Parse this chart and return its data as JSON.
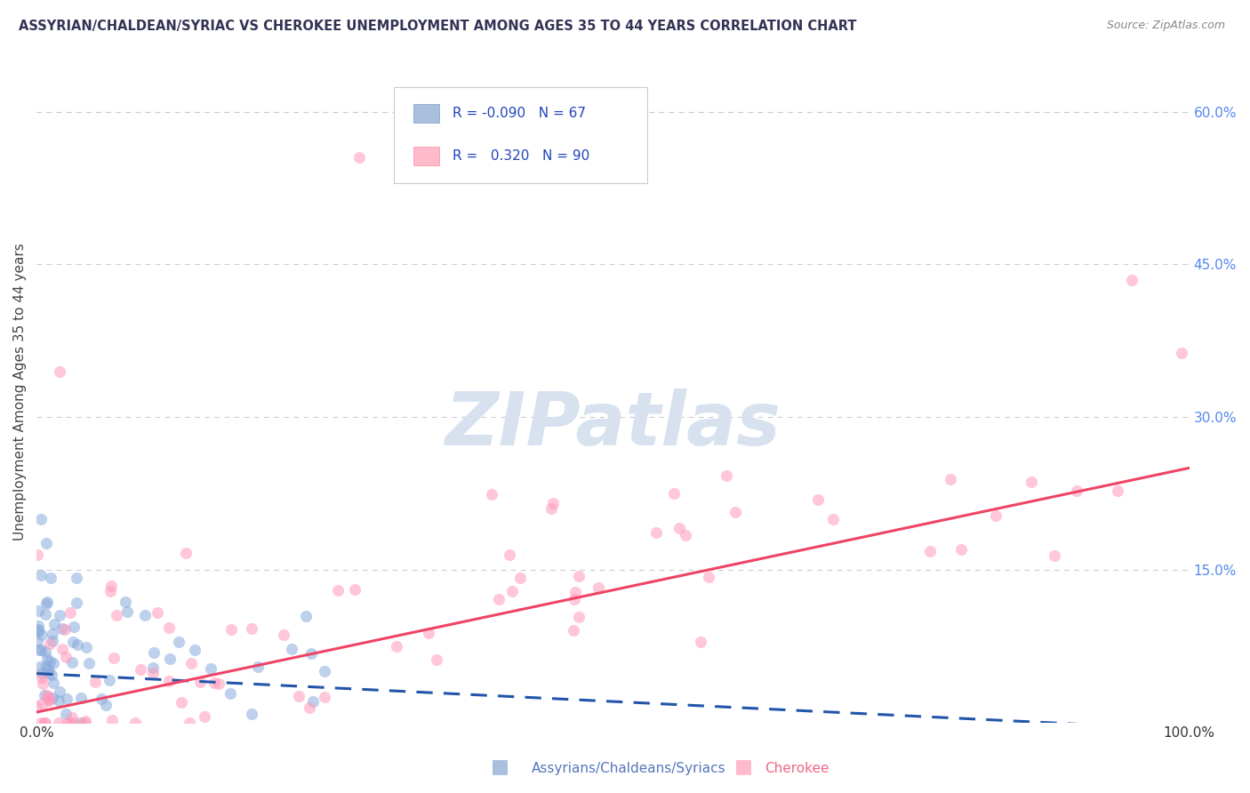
{
  "title": "ASSYRIAN/CHALDEAN/SYRIAC VS CHEROKEE UNEMPLOYMENT AMONG AGES 35 TO 44 YEARS CORRELATION CHART",
  "source_text": "Source: ZipAtlas.com",
  "ylabel": "Unemployment Among Ages 35 to 44 years",
  "xlim": [
    0,
    1.0
  ],
  "ylim": [
    0,
    0.65
  ],
  "ytick_values": [
    0.15,
    0.3,
    0.45,
    0.6
  ],
  "ytick_labels": [
    "15.0%",
    "30.0%",
    "45.0%",
    "60.0%"
  ],
  "xtick_values": [
    0.0,
    1.0
  ],
  "xtick_labels": [
    "0.0%",
    "100.0%"
  ],
  "legend_entries": [
    {
      "R": "-0.090",
      "N": "67",
      "color": "#AABFDD",
      "edge": "#88AACC"
    },
    {
      "R": "  0.320",
      "N": "90",
      "color": "#FFBBCC",
      "edge": "#FF99AA"
    }
  ],
  "blue_scatter_color": "#88AADD",
  "pink_scatter_color": "#FF99BB",
  "line_blue_color": "#2255AA",
  "line_pink_color": "#EE4466",
  "background_color": "#FFFFFF",
  "grid_color": "#CCCCCC",
  "watermark_text": "ZIPatlas",
  "watermark_color": "#D8E2EF",
  "watermark_fontsize": 60,
  "title_color": "#333355",
  "tick_color_right": "#5588EE",
  "tick_color_bottom": "#333333",
  "ylabel_color": "#444444",
  "source_color": "#888888",
  "legend_label_blue": "Assyrians/Chaldeans/Syriacs",
  "legend_label_pink": "Cherokee",
  "legend_label_color": "#5577AA",
  "pink_line_intercept": 0.01,
  "pink_line_slope": 0.24,
  "blue_line_intercept": 0.048,
  "blue_line_slope": -0.055
}
